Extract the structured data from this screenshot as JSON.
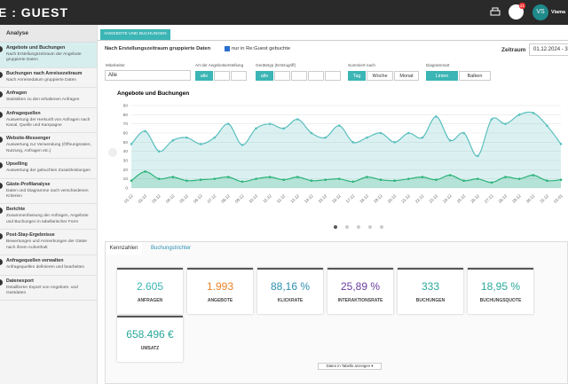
{
  "header": {
    "logo": "E : GUEST",
    "badge": "21",
    "avatar": "VS",
    "user": "Viama"
  },
  "sidebar": {
    "title": "Analyse",
    "items": [
      {
        "title": "Angebote und Buchungen",
        "desc": "Nach Erstellungszeitraum der Angebote gruppierte Daten"
      },
      {
        "title": "Buchungen nach Anreisezeitraum",
        "desc": "Nach Anreisedatum gruppierte Daten"
      },
      {
        "title": "Anfragen",
        "desc": "Statistiken zu den erhaltenen Anfragen"
      },
      {
        "title": "Anfragequellen",
        "desc": "Auswertung der Herkunft von Anfragen nach Kanal, Quelle und Kampagne"
      },
      {
        "title": "Website-Messenger",
        "desc": "Auswertung zur Verwendung (Öffnungsraten, Nutzung, Anfragen etc.)"
      },
      {
        "title": "Upselling",
        "desc": "Auswertung der gebuchten Zusatzleistungen"
      },
      {
        "title": "Gäste-Profilanalyse",
        "desc": "Daten und Diagramme nach verschiedenen Kriterien"
      },
      {
        "title": "Berichte",
        "desc": "Zusammenfassung der Anfragen, Angebote und Buchungen in tabellarischer Form"
      },
      {
        "title": "Post-Stay-Ergebnisse",
        "desc": "Bewertungen und Anmerkungen der Gäste nach ihrem Aufenthalt"
      },
      {
        "title": "Anfragequellen verwalten",
        "desc": "Anfragequellen definieren und bearbeiten"
      },
      {
        "title": "Datenexport",
        "desc": "Detaillierter Export von Angebots- und Gastdaten"
      }
    ]
  },
  "tab": "ANGEBOTE UND BUCHUNGEN",
  "filters": {
    "grouping": "Nach Erstellungszeitraum gruppierte Daten",
    "checkbox": "nur in Re:Guest gebuchte",
    "period_label": "Zeitraum",
    "period": "01.12.2024 - 3",
    "employee_label": "Mitarbeiter",
    "employee": "Alle",
    "creation_label": "Art der Angebotserstellung",
    "creation_all": "alle",
    "device_label": "Gerätetyp (Erstzugriff)",
    "device_all": "alle",
    "sum_label": "Summiert nach",
    "sum": [
      "Tag",
      "Woche",
      "Monat"
    ],
    "charttype_label": "Diagrammart",
    "charttype": [
      "Linien",
      "Balken"
    ]
  },
  "chart_data": {
    "type": "area",
    "title": "Angebote und Buchungen",
    "categories": [
      "01.12",
      "02.12",
      "03.12",
      "04.12",
      "05.12",
      "06.12",
      "07.12",
      "08.12",
      "09.12",
      "10.12",
      "11.12",
      "12.12",
      "13.12",
      "14.12",
      "15.12",
      "16.12",
      "17.12",
      "18.12",
      "19.12",
      "20.12",
      "21.12",
      "22.12",
      "23.12",
      "24.12",
      "25.12",
      "26.12",
      "27.12",
      "28.12",
      "29.12",
      "30.12",
      "31.12",
      "01.01"
    ],
    "series": [
      {
        "color": "#5bbfbf",
        "values": [
          48,
          62,
          40,
          52,
          55,
          48,
          55,
          70,
          47,
          65,
          70,
          65,
          75,
          60,
          55,
          68,
          50,
          55,
          60,
          50,
          60,
          55,
          78,
          52,
          60,
          35,
          75,
          70,
          80,
          82,
          68,
          48
        ]
      },
      {
        "color": "#2db37a",
        "values": [
          8,
          18,
          10,
          12,
          8,
          9,
          10,
          12,
          7,
          10,
          12,
          9,
          12,
          8,
          9,
          10,
          7,
          12,
          9,
          8,
          10,
          12,
          9,
          14,
          8,
          10,
          6,
          12,
          10,
          14,
          8,
          9
        ]
      }
    ],
    "ylim": [
      0,
      90
    ],
    "yticks": [
      0,
      10,
      20,
      30,
      40,
      50,
      60,
      70,
      80,
      90
    ],
    "grid": true
  },
  "kpi_tabs": [
    "Kennzahlen",
    "Buchungstrichter"
  ],
  "kpis": [
    {
      "value": "2.605",
      "label": "ANFRAGEN",
      "color": "#3bb5b5"
    },
    {
      "value": "1.993",
      "label": "ANGEBOTE",
      "color": "#e8832a"
    },
    {
      "value": "88,16 %",
      "label": "KLICKRATE",
      "color": "#2f8fb0"
    },
    {
      "value": "25,89 %",
      "label": "INTERAKTIONSRATE",
      "color": "#6a3fa0"
    },
    {
      "value": "333",
      "label": "BUCHUNGEN",
      "color": "#2aa89a"
    },
    {
      "value": "18,95 %",
      "label": "BUCHUNGSQUOTE",
      "color": "#2aa89a"
    },
    {
      "value": "658.496 €",
      "label": "UMSATZ",
      "color": "#2aa89a"
    }
  ],
  "table_button": "Daten in Tabelle anzeigen ▾"
}
